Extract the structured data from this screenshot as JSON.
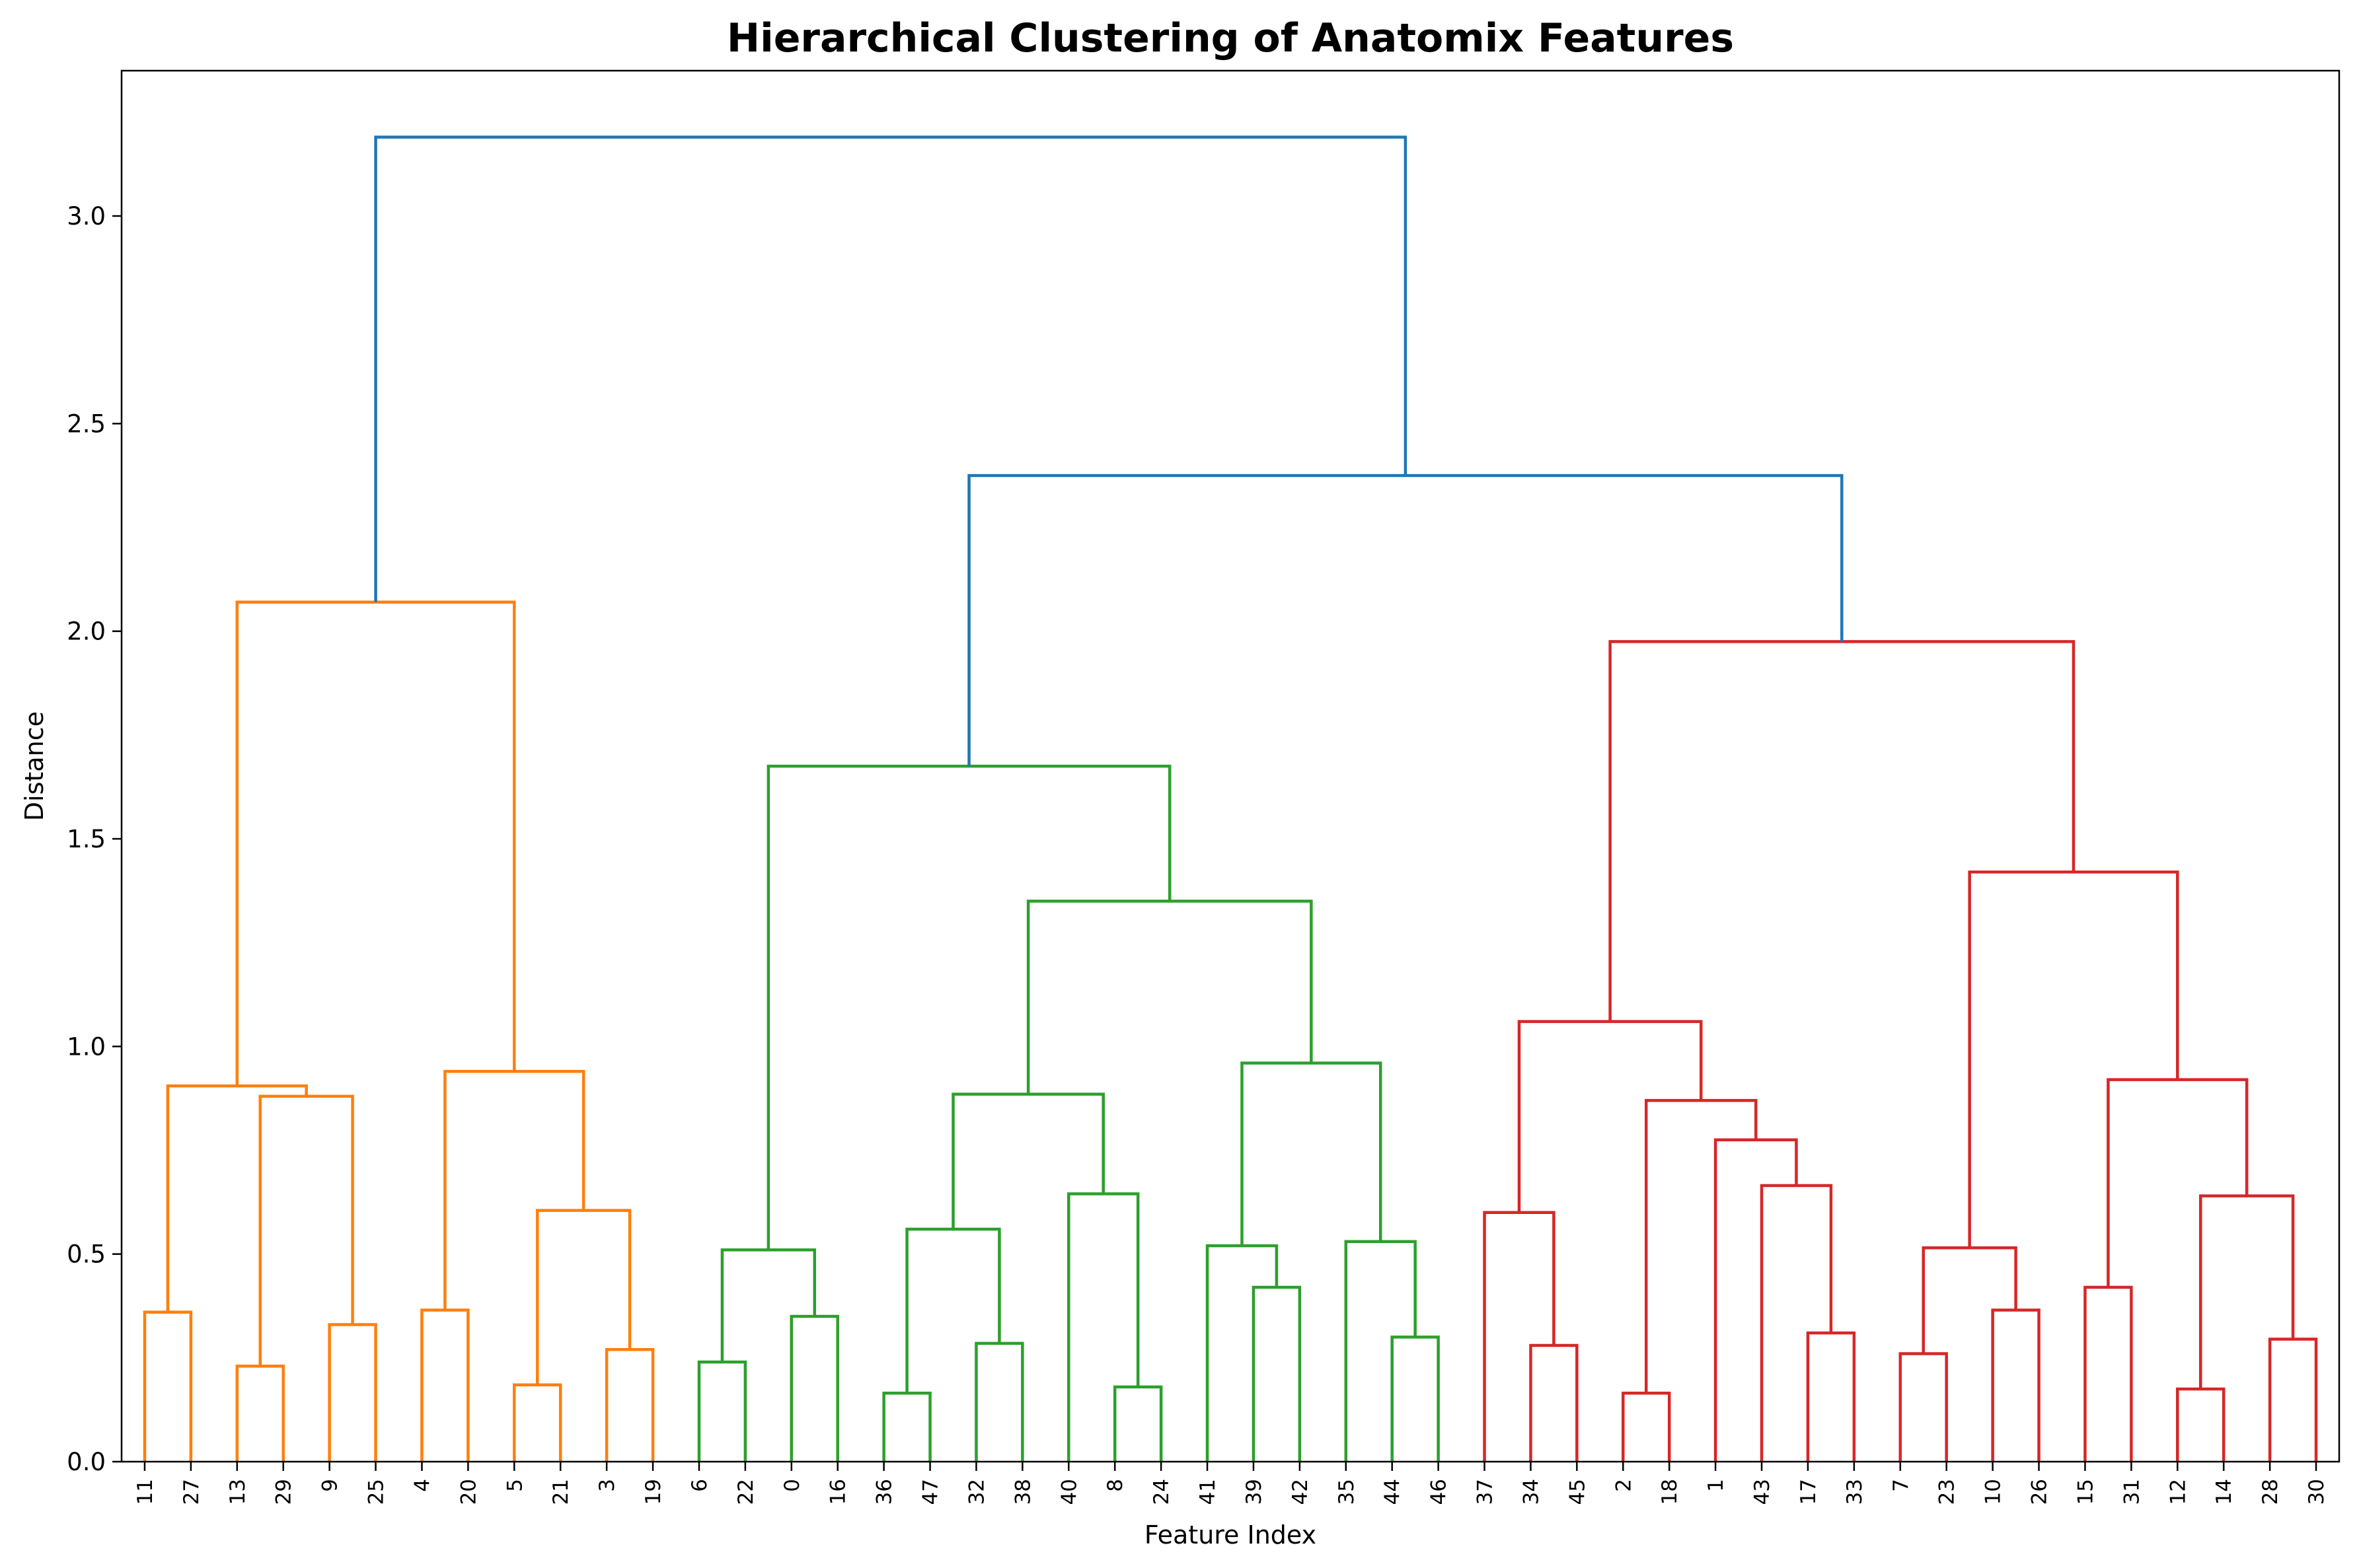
{
  "chart_data": {
    "type": "dendrogram",
    "title": "Hierarchical Clustering of Anatomix Features",
    "xlabel": "Feature Index",
    "ylabel": "Distance",
    "ylim": [
      0,
      3.35
    ],
    "yticks": [
      0.0,
      0.5,
      1.0,
      1.5,
      2.0,
      2.5,
      3.0
    ],
    "ytick_labels": [
      "0.0",
      "0.5",
      "1.0",
      "1.5",
      "2.0",
      "2.5",
      "3.0"
    ],
    "grid": false,
    "leaves": [
      "11",
      "27",
      "13",
      "29",
      "9",
      "25",
      "4",
      "20",
      "5",
      "21",
      "3",
      "19",
      "6",
      "22",
      "0",
      "16",
      "36",
      "47",
      "32",
      "38",
      "40",
      "8",
      "24",
      "41",
      "39",
      "42",
      "35",
      "44",
      "46",
      "37",
      "34",
      "45",
      "2",
      "18",
      "1",
      "43",
      "17",
      "33",
      "7",
      "23",
      "10",
      "26",
      "15",
      "31",
      "12",
      "14",
      "28",
      "30"
    ],
    "colors": {
      "C1": "#ff7f0e",
      "C2": "#2ca02c",
      "C3": "#d62728",
      "C0": "#1f77b4"
    },
    "links": [
      {
        "a": "L0",
        "b": "L1",
        "h": 0.36,
        "color": "C1"
      },
      {
        "a": "L2",
        "b": "L3",
        "h": 0.23,
        "color": "C1"
      },
      {
        "a": "L4",
        "b": "L5",
        "h": 0.33,
        "color": "C1"
      },
      {
        "a": "L2L3",
        "b": "L4L5",
        "h": 0.88,
        "color": "C1"
      },
      {
        "a": "L0L1",
        "b": "L2-5",
        "h": 0.905,
        "color": "C1"
      },
      {
        "a": "L6",
        "b": "L7",
        "h": 0.365,
        "color": "C1"
      },
      {
        "a": "L8",
        "b": "L9",
        "h": 0.185,
        "color": "C1"
      },
      {
        "a": "L10",
        "b": "L11",
        "h": 0.27,
        "color": "C1"
      },
      {
        "a": "L8L9",
        "b": "L10L11",
        "h": 0.605,
        "color": "C1"
      },
      {
        "a": "L6L7",
        "b": "L8-11",
        "h": 0.94,
        "color": "C1"
      },
      {
        "a": "L0-5",
        "b": "L6-11",
        "h": 2.07,
        "color": "C1"
      },
      {
        "a": "L12",
        "b": "L13",
        "h": 0.24,
        "color": "C2"
      },
      {
        "a": "L14",
        "b": "L15",
        "h": 0.35,
        "color": "C2"
      },
      {
        "a": "L12L13",
        "b": "L14L15",
        "h": 0.51,
        "color": "C2"
      },
      {
        "a": "L16",
        "b": "L17",
        "h": 0.165,
        "color": "C2"
      },
      {
        "a": "L18",
        "b": "L19",
        "h": 0.285,
        "color": "C2"
      },
      {
        "a": "L16L17",
        "b": "L18L19",
        "h": 0.56,
        "color": "C2"
      },
      {
        "a": "L21",
        "b": "L22",
        "h": 0.18,
        "color": "C2"
      },
      {
        "a": "L20",
        "b": "L21L22",
        "h": 0.645,
        "color": "C2"
      },
      {
        "a": "L16-19",
        "b": "L20-22",
        "h": 0.885,
        "color": "C2"
      },
      {
        "a": "L24",
        "b": "L25",
        "h": 0.42,
        "color": "C2"
      },
      {
        "a": "L23",
        "b": "L24L25",
        "h": 0.52,
        "color": "C2"
      },
      {
        "a": "L27",
        "b": "L28",
        "h": 0.3,
        "color": "C2"
      },
      {
        "a": "L26",
        "b": "L27L28",
        "h": 0.53,
        "color": "C2"
      },
      {
        "a": "L23-25",
        "b": "L26-28",
        "h": 0.96,
        "color": "C2"
      },
      {
        "a": "L16-22",
        "b": "L23-28",
        "h": 1.35,
        "color": "C2"
      },
      {
        "a": "L12-15",
        "b": "L16-28",
        "h": 1.675,
        "color": "C2"
      },
      {
        "a": "L30",
        "b": "L31",
        "h": 0.28,
        "color": "C3"
      },
      {
        "a": "L29",
        "b": "L30L31",
        "h": 0.6,
        "color": "C3"
      },
      {
        "a": "L32",
        "b": "L33",
        "h": 0.165,
        "color": "C3"
      },
      {
        "a": "L36",
        "b": "L37",
        "h": 0.31,
        "color": "C3"
      },
      {
        "a": "L35",
        "b": "L36L37",
        "h": 0.665,
        "color": "C3"
      },
      {
        "a": "L34",
        "b": "L35-37",
        "h": 0.775,
        "color": "C3"
      },
      {
        "a": "L32L33",
        "b": "L34-37",
        "h": 0.87,
        "color": "C3"
      },
      {
        "a": "L29-31",
        "b": "L32-37",
        "h": 1.06,
        "color": "C3"
      },
      {
        "a": "L38",
        "b": "L39",
        "h": 0.26,
        "color": "C3"
      },
      {
        "a": "L40",
        "b": "L41",
        "h": 0.365,
        "color": "C3"
      },
      {
        "a": "L38L39",
        "b": "L40L41",
        "h": 0.515,
        "color": "C3"
      },
      {
        "a": "L42",
        "b": "L43",
        "h": 0.42,
        "color": "C3"
      },
      {
        "a": "L44",
        "b": "L45",
        "h": 0.175,
        "color": "C3"
      },
      {
        "a": "L46",
        "b": "L47",
        "h": 0.295,
        "color": "C3"
      },
      {
        "a": "L44L45",
        "b": "L46L47",
        "h": 0.64,
        "color": "C3"
      },
      {
        "a": "L42L43",
        "b": "L44-47",
        "h": 0.92,
        "color": "C3"
      },
      {
        "a": "L38-41",
        "b": "L42-47",
        "h": 1.42,
        "color": "C3"
      },
      {
        "a": "L29-37",
        "b": "L38-47",
        "h": 1.975,
        "color": "C3"
      },
      {
        "a": "L12-28",
        "b": "L29-47",
        "h": 2.375,
        "color": "C0"
      },
      {
        "a": "L0-11",
        "b": "L12-47",
        "h": 3.19,
        "color": "C0"
      }
    ]
  }
}
